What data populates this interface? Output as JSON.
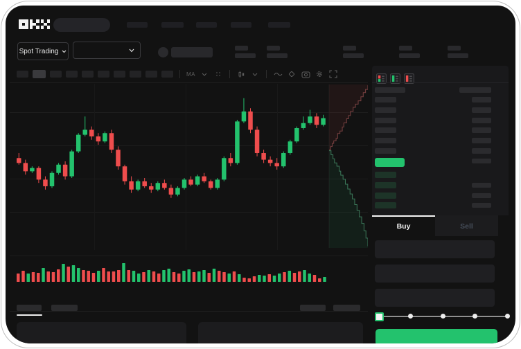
{
  "brand": {
    "name": "OKX",
    "logo_grid": {
      "O": [
        [
          1,
          1,
          1
        ],
        [
          1,
          0,
          1
        ],
        [
          1,
          1,
          1
        ]
      ],
      "K": [
        [
          1,
          0,
          1
        ],
        [
          1,
          1,
          0
        ],
        [
          1,
          0,
          1
        ]
      ],
      "X": [
        [
          1,
          0,
          1
        ],
        [
          0,
          1,
          0
        ],
        [
          1,
          0,
          1
        ]
      ]
    }
  },
  "colors": {
    "up_green": "#23c26d",
    "down_red": "#ef4d4d",
    "bid_row_green": "#1d3428",
    "depth_ask_line": "#7c4242",
    "depth_bid_line": "#3c7a5b",
    "depth_ask_fill": "rgba(190,70,70,0.09)",
    "depth_bid_fill": "rgba(35,194,109,0.08)",
    "slider_track": "#8f8f8f",
    "active_tab_indicator": "#f5f5f5"
  },
  "selector_row": {
    "market_type_label": "Spot Trading"
  },
  "chart_toolbar": {
    "timeframe_count": 10,
    "active_timeframe_index": 1,
    "ma_label": "MA",
    "icons": [
      "dots-grid",
      "candle-style",
      "chevron-down",
      "wave-line",
      "eraser-tool",
      "camera-screenshot",
      "gear-settings",
      "fullscreen-expand"
    ]
  },
  "chart_data": {
    "type": "candlestick+volume+depth",
    "title": "",
    "xlabel": "",
    "ylabel": "",
    "ylim": [
      0,
      100
    ],
    "grid": "horizontal-faint",
    "candles_ohlc": [
      [
        57,
        60,
        53,
        54
      ],
      [
        54,
        56,
        47,
        49
      ],
      [
        49,
        52,
        48,
        51
      ],
      [
        51,
        52,
        42,
        44
      ],
      [
        44,
        46,
        38,
        40
      ],
      [
        40,
        49,
        39,
        48
      ],
      [
        48,
        54,
        47,
        53
      ],
      [
        53,
        55,
        44,
        46
      ],
      [
        46,
        62,
        45,
        61
      ],
      [
        61,
        72,
        60,
        71
      ],
      [
        71,
        82,
        70,
        74
      ],
      [
        74,
        76,
        68,
        70
      ],
      [
        70,
        72,
        65,
        67
      ],
      [
        67,
        73,
        66,
        72
      ],
      [
        72,
        74,
        60,
        62
      ],
      [
        62,
        64,
        50,
        52
      ],
      [
        52,
        53,
        41,
        43
      ],
      [
        43,
        46,
        36,
        38
      ],
      [
        38,
        44,
        37,
        43
      ],
      [
        43,
        45,
        39,
        40
      ],
      [
        40,
        42,
        36,
        38
      ],
      [
        38,
        43,
        37,
        42
      ],
      [
        42,
        44,
        38,
        39
      ],
      [
        39,
        41,
        33,
        35
      ],
      [
        35,
        40,
        34,
        39
      ],
      [
        39,
        45,
        38,
        44
      ],
      [
        44,
        46,
        40,
        41
      ],
      [
        41,
        47,
        40,
        46
      ],
      [
        46,
        48,
        42,
        43
      ],
      [
        43,
        44,
        38,
        39
      ],
      [
        39,
        45,
        38,
        44
      ],
      [
        44,
        58,
        43,
        57
      ],
      [
        57,
        60,
        52,
        54
      ],
      [
        54,
        80,
        53,
        79
      ],
      [
        79,
        93,
        78,
        85
      ],
      [
        85,
        87,
        72,
        74
      ],
      [
        74,
        76,
        58,
        60
      ],
      [
        60,
        62,
        54,
        56
      ],
      [
        56,
        58,
        52,
        54
      ],
      [
        54,
        57,
        50,
        52
      ],
      [
        52,
        61,
        51,
        60
      ],
      [
        60,
        68,
        59,
        67
      ],
      [
        67,
        76,
        66,
        75
      ],
      [
        75,
        82,
        74,
        78
      ],
      [
        78,
        86,
        77,
        82
      ],
      [
        82,
        84,
        75,
        77
      ],
      [
        77,
        83,
        76,
        81
      ]
    ],
    "volume": {
      "values": [
        12,
        16,
        12,
        14,
        13,
        20,
        15,
        14,
        18,
        26,
        22,
        24,
        20,
        17,
        16,
        13,
        16,
        20,
        15,
        15,
        17,
        27,
        17,
        16,
        12,
        14,
        17,
        15,
        12,
        17,
        19,
        14,
        12,
        16,
        18,
        14,
        15,
        17,
        13,
        19,
        16,
        14,
        12,
        15,
        11,
        6,
        5,
        8,
        10,
        9,
        11,
        9,
        12,
        14,
        16,
        13,
        15,
        17,
        12,
        10,
        5,
        7
      ],
      "colors": [
        "r",
        "r",
        "g",
        "r",
        "r",
        "g",
        "r",
        "r",
        "r",
        "g",
        "r",
        "g",
        "g",
        "r",
        "r",
        "r",
        "g",
        "r",
        "r",
        "r",
        "r",
        "g",
        "r",
        "g",
        "g",
        "r",
        "g",
        "r",
        "r",
        "g",
        "g",
        "r",
        "r",
        "g",
        "g",
        "r",
        "g",
        "g",
        "r",
        "g",
        "r",
        "r",
        "g",
        "r",
        "g",
        "r",
        "r",
        "r",
        "g",
        "g",
        "r",
        "g",
        "g",
        "r",
        "g",
        "r",
        "r",
        "g",
        "g",
        "r",
        "r",
        "g"
      ]
    },
    "depth": {
      "asks": [
        [
          0,
          0.4
        ],
        [
          0.04,
          0.38
        ],
        [
          0.08,
          0.36
        ],
        [
          0.12,
          0.345
        ],
        [
          0.18,
          0.33
        ],
        [
          0.22,
          0.3
        ],
        [
          0.28,
          0.285
        ],
        [
          0.34,
          0.26
        ],
        [
          0.38,
          0.235
        ],
        [
          0.45,
          0.21
        ],
        [
          0.5,
          0.19
        ],
        [
          0.55,
          0.165
        ],
        [
          0.62,
          0.14
        ],
        [
          0.68,
          0.12
        ],
        [
          0.75,
          0.1
        ],
        [
          0.82,
          0.075
        ],
        [
          0.88,
          0.05
        ],
        [
          0.94,
          0.03
        ],
        [
          1,
          0.005
        ]
      ],
      "bids": [
        [
          0,
          0.405
        ],
        [
          0.05,
          0.43
        ],
        [
          0.1,
          0.455
        ],
        [
          0.14,
          0.48
        ],
        [
          0.2,
          0.5
        ],
        [
          0.26,
          0.53
        ],
        [
          0.3,
          0.555
        ],
        [
          0.36,
          0.58
        ],
        [
          0.42,
          0.61
        ],
        [
          0.48,
          0.64
        ],
        [
          0.54,
          0.67
        ],
        [
          0.6,
          0.7
        ],
        [
          0.66,
          0.735
        ],
        [
          0.72,
          0.77
        ],
        [
          0.78,
          0.81
        ],
        [
          0.84,
          0.85
        ],
        [
          0.9,
          0.895
        ],
        [
          0.95,
          0.94
        ],
        [
          1,
          0.99
        ]
      ]
    }
  },
  "order_book": {
    "view_toggles": [
      "book-combined",
      "book-bids-only",
      "book-asks-only"
    ],
    "ask_row_count": 6,
    "price_row_highlight": true,
    "bid_rows": [
      {
        "right": false
      },
      {
        "right": true
      },
      {
        "right": true
      },
      {
        "right": true
      }
    ]
  },
  "trade_panel": {
    "tabs": [
      {
        "label": "Buy",
        "active": true
      },
      {
        "label": "Sell",
        "active": false
      }
    ],
    "field_count": 3,
    "slider": {
      "stops": 5,
      "active_index": 0
    },
    "submit_label": ""
  }
}
